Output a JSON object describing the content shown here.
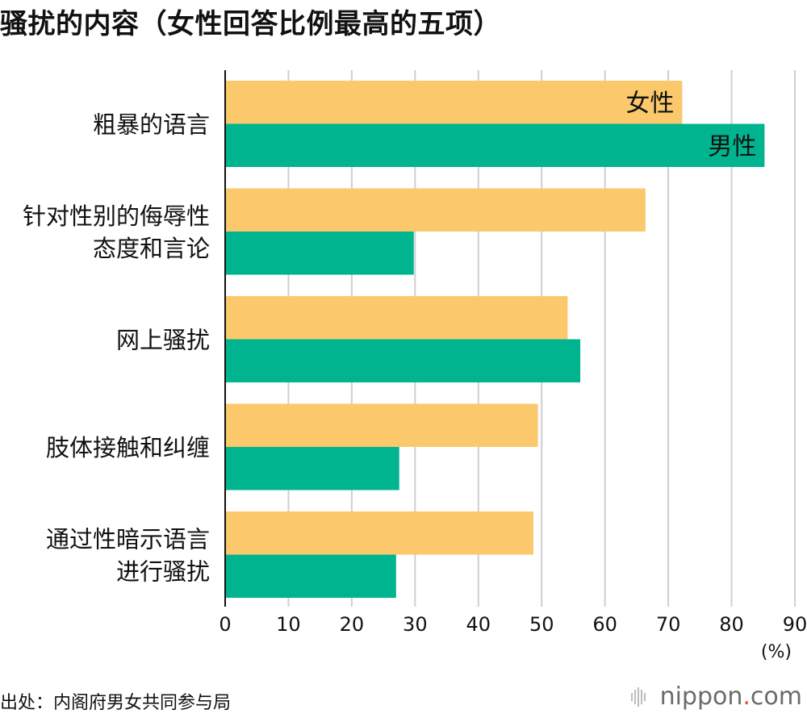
{
  "title": "骚扰的内容（女性回答比例最高的五项）",
  "source": "出处：内阁府男女共同参与局",
  "brand": {
    "name": "nippon",
    "dot": ".",
    "suffix": "com"
  },
  "colors": {
    "female": "#fbc96b",
    "male": "#00b48f",
    "grid": "#cfcfcf",
    "axis": "#111111"
  },
  "chart_data": {
    "type": "bar",
    "orientation": "horizontal",
    "categories": [
      [
        "粗暴的语言"
      ],
      [
        "针对性别的侮辱性",
        "态度和言论"
      ],
      [
        "网上骚扰"
      ],
      [
        "肢体接触和纠缠"
      ],
      [
        "通过性暗示语言",
        "进行骚扰"
      ]
    ],
    "series": [
      {
        "name": "女性",
        "values": [
          72.2,
          66.4,
          54.1,
          49.4,
          48.7
        ]
      },
      {
        "name": "男性",
        "values": [
          85.2,
          29.8,
          56.1,
          27.5,
          27.0
        ]
      }
    ],
    "xlim": [
      0,
      90
    ],
    "xticks": [
      0,
      10,
      20,
      30,
      40,
      50,
      60,
      70,
      80,
      90
    ],
    "xunit": "(%)",
    "grid": true,
    "legend": "inside-first-bars"
  }
}
